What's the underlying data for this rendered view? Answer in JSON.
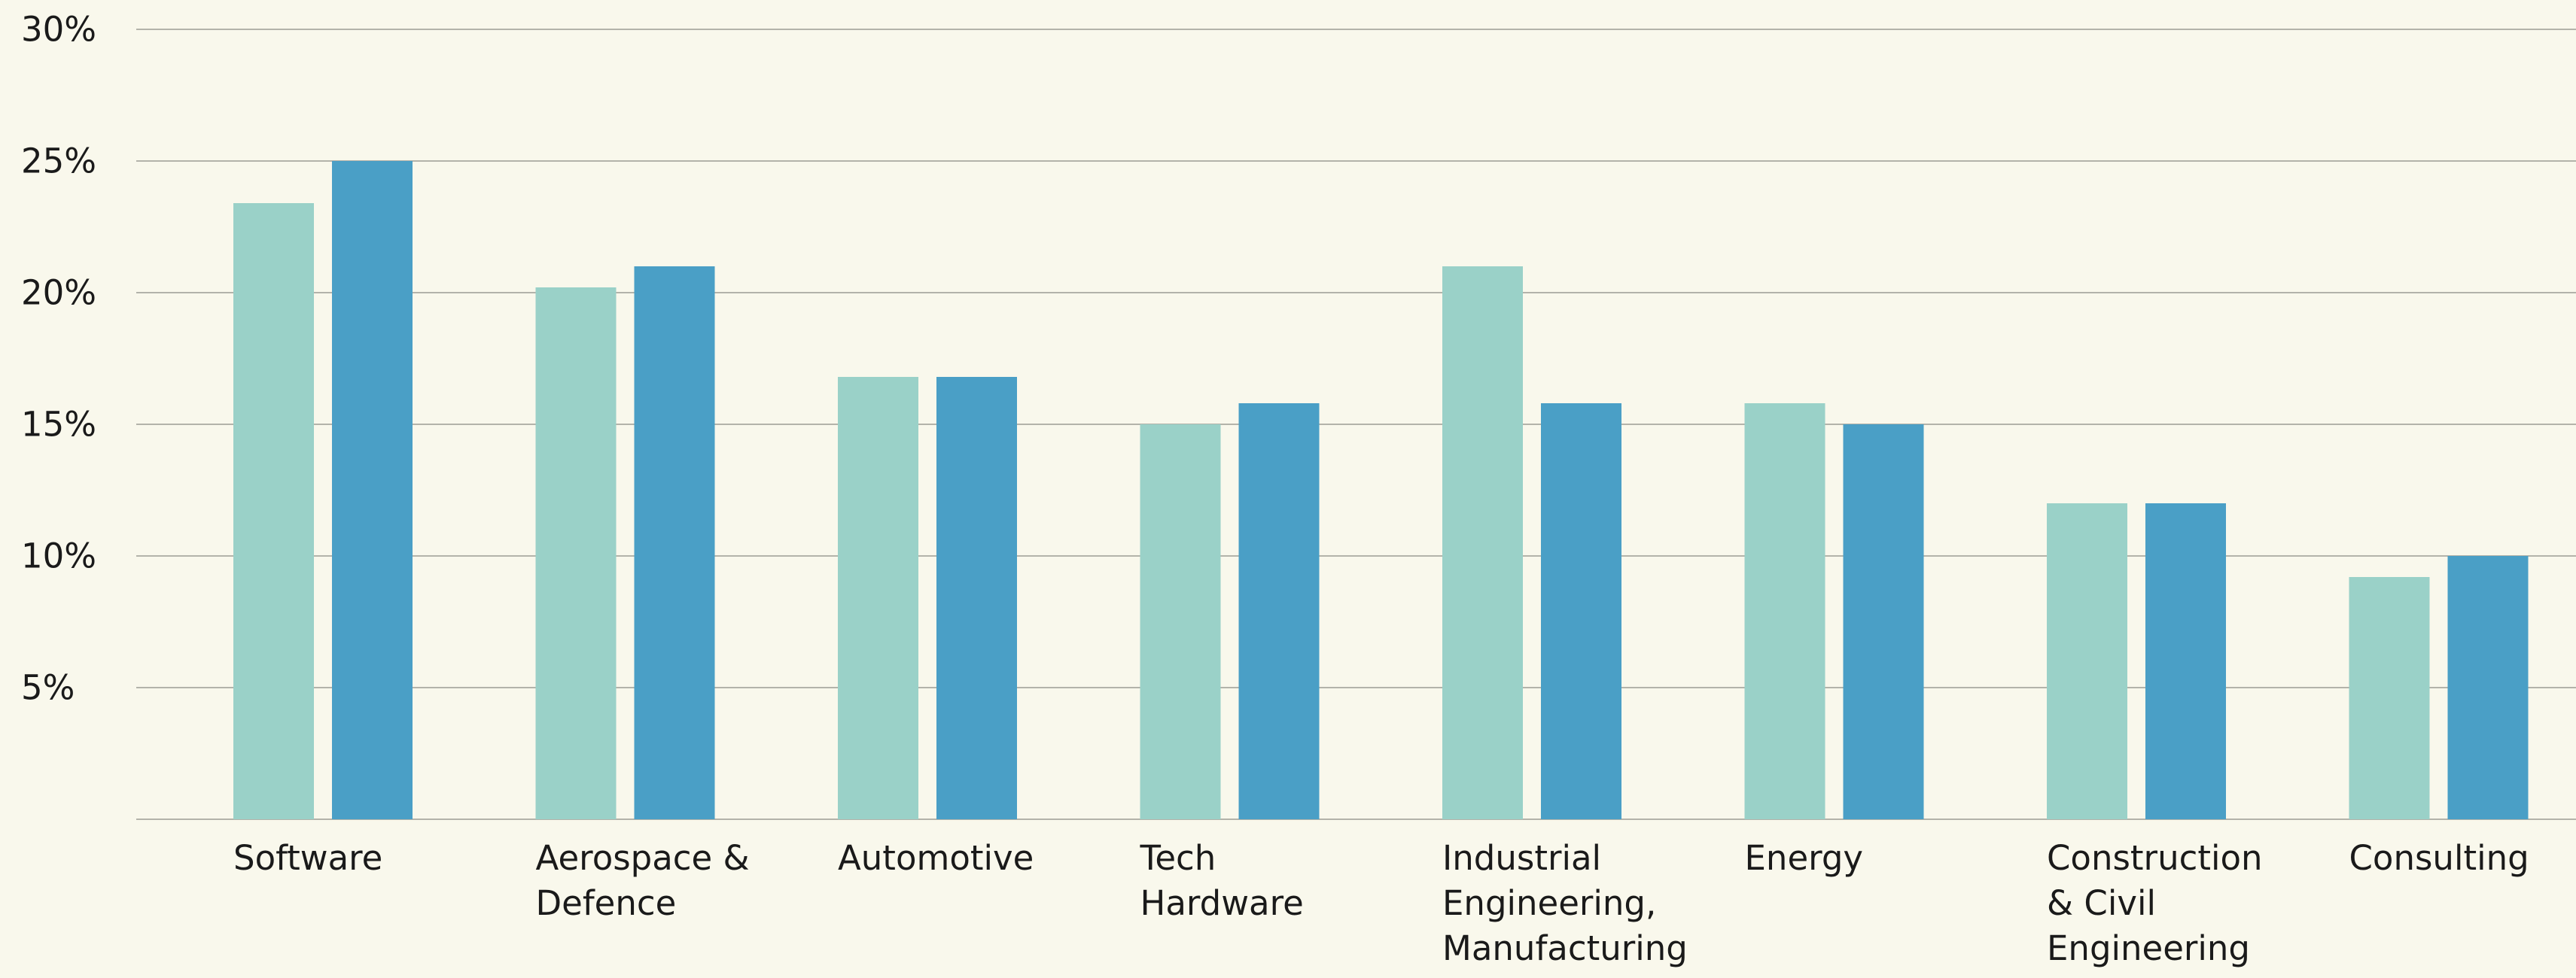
{
  "chart_data": {
    "type": "bar",
    "categories": [
      "Software",
      "Aerospace &\nDefence",
      "Automotive",
      "Tech\nHardware",
      "Industrial\nEngineering,\nManufacturing",
      "Energy",
      "Construction\n& Civil\nEngineering",
      "Consulting"
    ],
    "series": [
      {
        "color": "#9ad1c8",
        "values": [
          23.4,
          20.2,
          16.8,
          15,
          21,
          15.8,
          12,
          9.2
        ]
      },
      {
        "color": "#4a9fc6",
        "values": [
          25,
          21,
          16.8,
          15.8,
          15.8,
          15,
          12,
          10
        ]
      }
    ],
    "ylim": [
      0,
      30
    ],
    "yticks": [
      {
        "value": 5,
        "label": "5%"
      },
      {
        "value": 10,
        "label": "10%"
      },
      {
        "value": 15,
        "label": "15%"
      },
      {
        "value": 20,
        "label": "20%"
      },
      {
        "value": 25,
        "label": "25%"
      },
      {
        "value": 30,
        "label": "30%"
      }
    ],
    "grid": true
  }
}
